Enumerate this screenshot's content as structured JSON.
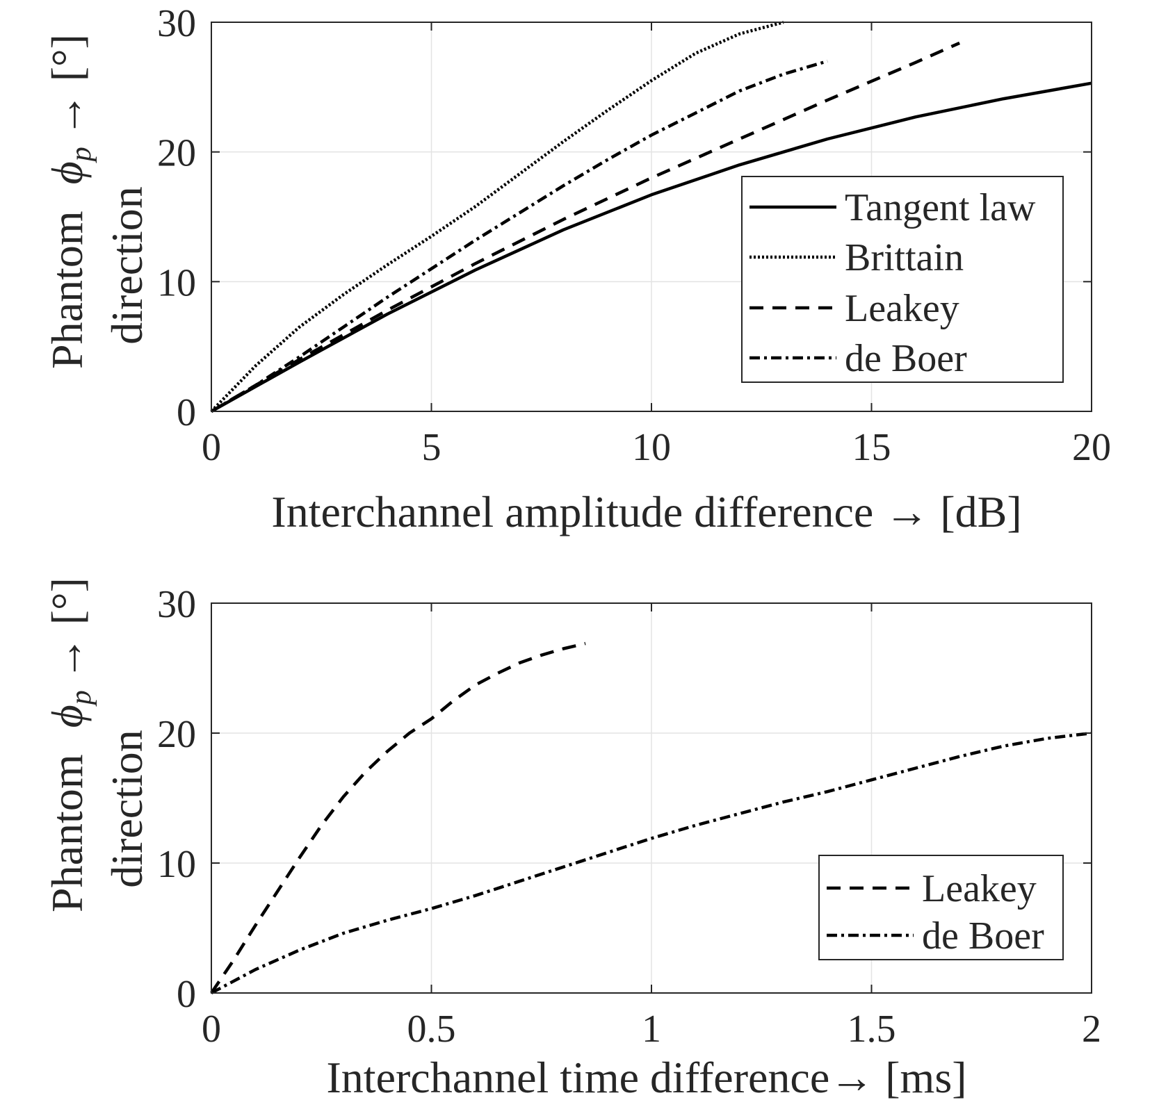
{
  "chart_data": [
    {
      "type": "line",
      "xlabel": "Interchannel amplitude difference → [dB]",
      "ylabel_line1": "Phantom",
      "ylabel_line2": "direction",
      "ylabel_symbol": "ϕ",
      "ylabel_subscript": "p",
      "ylabel_unit": "→ [°]",
      "xlim": [
        0,
        20
      ],
      "ylim": [
        0,
        30
      ],
      "xticks": [
        0,
        5,
        10,
        15,
        20
      ],
      "yticks": [
        0,
        10,
        20,
        30
      ],
      "grid": true,
      "legend_position": "center-right",
      "series": [
        {
          "name": "Tangent law",
          "style": "solid",
          "x": [
            0,
            2,
            4,
            6,
            8,
            10,
            12,
            14,
            16,
            18,
            20
          ],
          "y": [
            0,
            3.8,
            7.5,
            10.9,
            14.0,
            16.7,
            19.0,
            21.0,
            22.7,
            24.1,
            25.3
          ]
        },
        {
          "name": "Brittain",
          "style": "dotted",
          "x": [
            0,
            1,
            2,
            3,
            4,
            5,
            6,
            7,
            8,
            9,
            10,
            11,
            12,
            13
          ],
          "y": [
            0,
            3.5,
            6.5,
            9.0,
            11.3,
            13.5,
            15.8,
            18.3,
            20.8,
            23.2,
            25.5,
            27.6,
            29.1,
            30.0
          ]
        },
        {
          "name": "Leakey",
          "style": "dashed",
          "x": [
            0,
            2,
            4,
            6,
            8,
            10,
            12,
            14,
            16,
            17
          ],
          "y": [
            0,
            4.0,
            7.8,
            11.4,
            14.8,
            18.0,
            21.0,
            24.0,
            26.9,
            28.4
          ]
        },
        {
          "name": "de Boer",
          "style": "dashdot",
          "x": [
            0,
            1,
            2,
            3,
            4,
            5,
            6,
            7,
            8,
            9,
            10,
            11,
            12,
            13,
            14
          ],
          "y": [
            0,
            2.0,
            4.2,
            6.5,
            8.8,
            11.0,
            13.2,
            15.3,
            17.4,
            19.4,
            21.3,
            23.0,
            24.7,
            26.0,
            27.0
          ]
        }
      ]
    },
    {
      "type": "line",
      "xlabel": "Interchannel time difference→ [ms]",
      "ylabel_line1": "Phantom",
      "ylabel_line2": "direction",
      "ylabel_symbol": "ϕ",
      "ylabel_subscript": "p",
      "ylabel_unit": "→ [°]",
      "xlim": [
        0,
        2
      ],
      "ylim": [
        0,
        30
      ],
      "xticks": [
        0,
        0.5,
        1,
        1.5,
        2
      ],
      "yticks": [
        0,
        10,
        20,
        30
      ],
      "grid": true,
      "legend_position": "bottom-right",
      "series": [
        {
          "name": "Leakey",
          "style": "dashed",
          "x": [
            0,
            0.05,
            0.1,
            0.15,
            0.2,
            0.25,
            0.3,
            0.35,
            0.4,
            0.45,
            0.5,
            0.55,
            0.6,
            0.65,
            0.7,
            0.75,
            0.8,
            0.85
          ],
          "y": [
            0,
            2.5,
            5.2,
            7.8,
            10.4,
            12.9,
            15.1,
            17.0,
            18.6,
            20.0,
            21.1,
            22.5,
            23.7,
            24.6,
            25.4,
            26.0,
            26.5,
            26.9
          ]
        },
        {
          "name": "de Boer",
          "style": "dashdot",
          "x": [
            0,
            0.1,
            0.2,
            0.3,
            0.4,
            0.5,
            0.6,
            0.7,
            0.8,
            0.9,
            1.0,
            1.1,
            1.2,
            1.3,
            1.4,
            1.5,
            1.6,
            1.7,
            1.8,
            1.9,
            2.0
          ],
          "y": [
            0,
            1.8,
            3.3,
            4.6,
            5.6,
            6.5,
            7.5,
            8.6,
            9.7,
            10.8,
            11.9,
            12.9,
            13.8,
            14.7,
            15.5,
            16.4,
            17.3,
            18.2,
            19.0,
            19.6,
            20.0
          ]
        }
      ]
    }
  ]
}
